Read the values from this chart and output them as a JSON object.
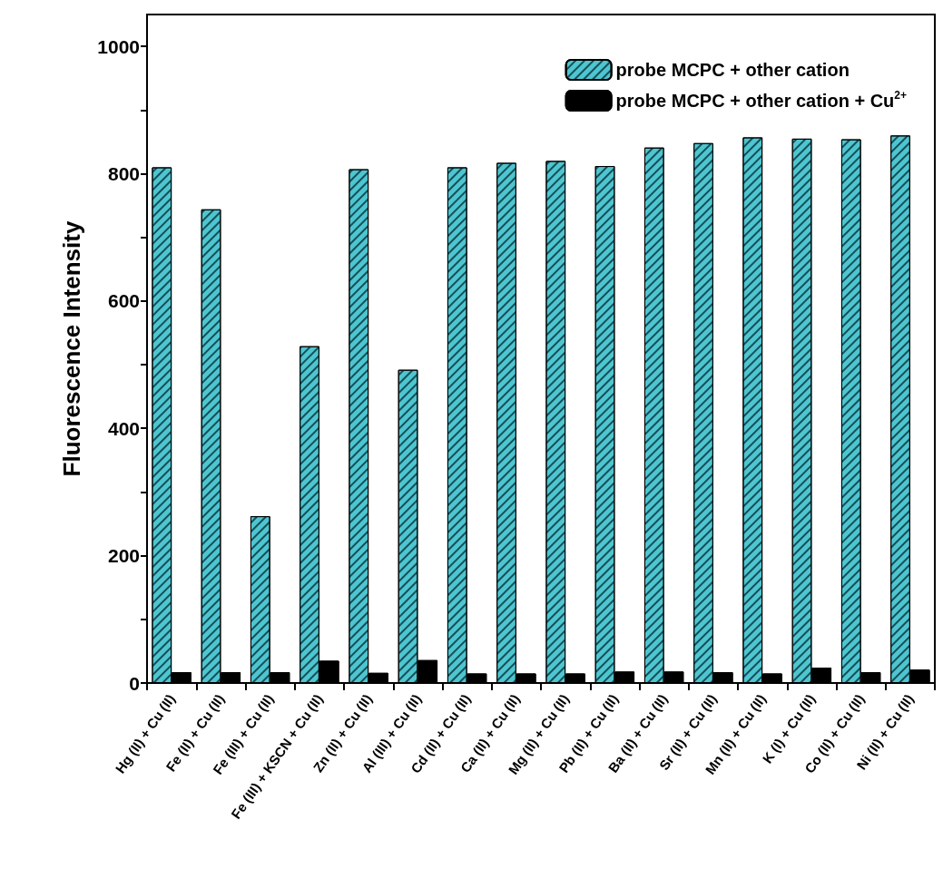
{
  "chart_data": {
    "type": "bar",
    "categories": [
      "Hg (II) + Cu (II)",
      "Fe (II) + Cu (II)",
      "Fe (III) + Cu (II)",
      "Fe (III) + KSCN + Cu (II)",
      "Zn (II) + Cu (II)",
      "Al (III) + Cu (II)",
      "Cd (II) + Cu (II)",
      "Ca (II) + Cu (II)",
      "Mg (II) + Cu (II)",
      "Pb (II) + Cu (II)",
      "Ba (II) + Cu (II)",
      "Sr (II) + Cu (II)",
      "Mn (II) + Cu (II)",
      "K (I) + Cu (II)",
      "Co (II) + Cu (II)",
      "Ni (II) + Cu (II)"
    ],
    "series": [
      {
        "name": "probe MCPC + other cation",
        "color": "#4ec5d0",
        "values": [
          810,
          744,
          262,
          529,
          807,
          492,
          810,
          817,
          820,
          812,
          841,
          848,
          857,
          855,
          854,
          860
        ]
      },
      {
        "name": "probe MCPC + other cation + Cu$^{2+}$",
        "color": "#000000",
        "values": [
          17,
          17,
          17,
          35,
          16,
          36,
          15,
          15,
          15,
          18,
          18,
          17,
          15,
          24,
          17,
          21
        ]
      }
    ],
    "ylabel": "Fluorescence Intensity",
    "ylim": [
      0,
      1050
    ],
    "yticks": [
      0,
      {
        "value": 100,
        "label": null
      },
      200,
      {
        "value": 300,
        "label": null
      },
      400,
      {
        "value": 500,
        "label": null
      },
      600,
      {
        "value": 700,
        "label": null
      },
      800,
      {
        "value": 900,
        "label": null
      },
      1000
    ],
    "grid": false,
    "legend": "top right"
  }
}
